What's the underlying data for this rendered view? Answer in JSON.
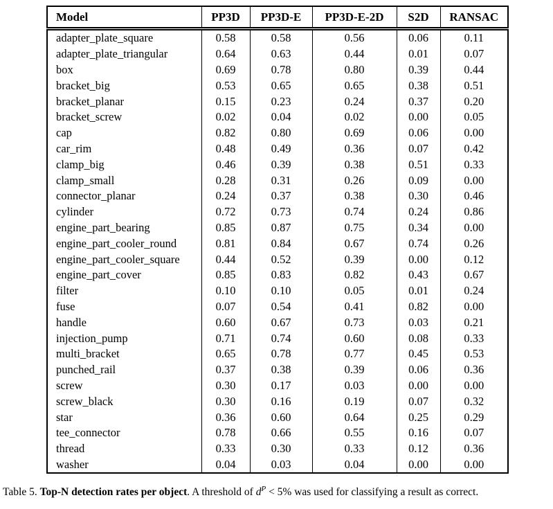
{
  "table": {
    "columns": [
      "Model",
      "PP3D",
      "PP3D-E",
      "PP3D-E-2D",
      "S2D",
      "RANSAC"
    ],
    "rows": [
      [
        "adapter_plate_square",
        "0.58",
        "0.58",
        "0.56",
        "0.06",
        "0.11"
      ],
      [
        "adapter_plate_triangular",
        "0.64",
        "0.63",
        "0.44",
        "0.01",
        "0.07"
      ],
      [
        "box",
        "0.69",
        "0.78",
        "0.80",
        "0.39",
        "0.44"
      ],
      [
        "bracket_big",
        "0.53",
        "0.65",
        "0.65",
        "0.38",
        "0.51"
      ],
      [
        "bracket_planar",
        "0.15",
        "0.23",
        "0.24",
        "0.37",
        "0.20"
      ],
      [
        "bracket_screw",
        "0.02",
        "0.04",
        "0.02",
        "0.00",
        "0.05"
      ],
      [
        "cap",
        "0.82",
        "0.80",
        "0.69",
        "0.06",
        "0.00"
      ],
      [
        "car_rim",
        "0.48",
        "0.49",
        "0.36",
        "0.07",
        "0.42"
      ],
      [
        "clamp_big",
        "0.46",
        "0.39",
        "0.38",
        "0.51",
        "0.33"
      ],
      [
        "clamp_small",
        "0.28",
        "0.31",
        "0.26",
        "0.09",
        "0.00"
      ],
      [
        "connector_planar",
        "0.24",
        "0.37",
        "0.38",
        "0.30",
        "0.46"
      ],
      [
        "cylinder",
        "0.72",
        "0.73",
        "0.74",
        "0.24",
        "0.86"
      ],
      [
        "engine_part_bearing",
        "0.85",
        "0.87",
        "0.75",
        "0.34",
        "0.00"
      ],
      [
        "engine_part_cooler_round",
        "0.81",
        "0.84",
        "0.67",
        "0.74",
        "0.26"
      ],
      [
        "engine_part_cooler_square",
        "0.44",
        "0.52",
        "0.39",
        "0.00",
        "0.12"
      ],
      [
        "engine_part_cover",
        "0.85",
        "0.83",
        "0.82",
        "0.43",
        "0.67"
      ],
      [
        "filter",
        "0.10",
        "0.10",
        "0.05",
        "0.01",
        "0.24"
      ],
      [
        "fuse",
        "0.07",
        "0.54",
        "0.41",
        "0.82",
        "0.00"
      ],
      [
        "handle",
        "0.60",
        "0.67",
        "0.73",
        "0.03",
        "0.21"
      ],
      [
        "injection_pump",
        "0.71",
        "0.74",
        "0.60",
        "0.08",
        "0.33"
      ],
      [
        "multi_bracket",
        "0.65",
        "0.78",
        "0.77",
        "0.45",
        "0.53"
      ],
      [
        "punched_rail",
        "0.37",
        "0.38",
        "0.39",
        "0.06",
        "0.36"
      ],
      [
        "screw",
        "0.30",
        "0.17",
        "0.03",
        "0.00",
        "0.00"
      ],
      [
        "screw_black",
        "0.30",
        "0.16",
        "0.19",
        "0.07",
        "0.32"
      ],
      [
        "star",
        "0.36",
        "0.60",
        "0.64",
        "0.25",
        "0.29"
      ],
      [
        "tee_connector",
        "0.78",
        "0.66",
        "0.55",
        "0.16",
        "0.07"
      ],
      [
        "thread",
        "0.33",
        "0.30",
        "0.33",
        "0.12",
        "0.36"
      ],
      [
        "washer",
        "0.04",
        "0.03",
        "0.04",
        "0.00",
        "0.00"
      ]
    ]
  },
  "chart_data": {
    "type": "table",
    "title": "Top-N detection rates per object",
    "columns": [
      "Model",
      "PP3D",
      "PP3D-E",
      "PP3D-E-2D",
      "S2D",
      "RANSAC"
    ],
    "series": [
      {
        "name": "PP3D",
        "values": [
          0.58,
          0.64,
          0.69,
          0.53,
          0.15,
          0.02,
          0.82,
          0.48,
          0.46,
          0.28,
          0.24,
          0.72,
          0.85,
          0.81,
          0.44,
          0.85,
          0.1,
          0.07,
          0.6,
          0.71,
          0.65,
          0.37,
          0.3,
          0.3,
          0.36,
          0.78,
          0.33,
          0.04
        ]
      },
      {
        "name": "PP3D-E",
        "values": [
          0.58,
          0.63,
          0.78,
          0.65,
          0.23,
          0.04,
          0.8,
          0.49,
          0.39,
          0.31,
          0.37,
          0.73,
          0.87,
          0.84,
          0.52,
          0.83,
          0.1,
          0.54,
          0.67,
          0.74,
          0.78,
          0.38,
          0.17,
          0.16,
          0.6,
          0.66,
          0.3,
          0.03
        ]
      },
      {
        "name": "PP3D-E-2D",
        "values": [
          0.56,
          0.44,
          0.8,
          0.65,
          0.24,
          0.02,
          0.69,
          0.36,
          0.38,
          0.26,
          0.38,
          0.74,
          0.75,
          0.67,
          0.39,
          0.82,
          0.05,
          0.41,
          0.73,
          0.6,
          0.77,
          0.39,
          0.03,
          0.19,
          0.64,
          0.55,
          0.33,
          0.04
        ]
      },
      {
        "name": "S2D",
        "values": [
          0.06,
          0.01,
          0.39,
          0.38,
          0.37,
          0.0,
          0.06,
          0.07,
          0.51,
          0.09,
          0.3,
          0.24,
          0.34,
          0.74,
          0.0,
          0.43,
          0.01,
          0.82,
          0.03,
          0.08,
          0.45,
          0.06,
          0.0,
          0.07,
          0.25,
          0.16,
          0.12,
          0.0
        ]
      },
      {
        "name": "RANSAC",
        "values": [
          0.11,
          0.07,
          0.44,
          0.51,
          0.2,
          0.05,
          0.0,
          0.42,
          0.33,
          0.0,
          0.46,
          0.86,
          0.0,
          0.26,
          0.12,
          0.67,
          0.24,
          0.0,
          0.21,
          0.33,
          0.53,
          0.36,
          0.0,
          0.32,
          0.29,
          0.07,
          0.36,
          0.0
        ]
      }
    ],
    "categories": [
      "adapter_plate_square",
      "adapter_plate_triangular",
      "box",
      "bracket_big",
      "bracket_planar",
      "bracket_screw",
      "cap",
      "car_rim",
      "clamp_big",
      "clamp_small",
      "connector_planar",
      "cylinder",
      "engine_part_bearing",
      "engine_part_cooler_round",
      "engine_part_cooler_square",
      "engine_part_cover",
      "filter",
      "fuse",
      "handle",
      "injection_pump",
      "multi_bracket",
      "punched_rail",
      "screw",
      "screw_black",
      "star",
      "tee_connector",
      "thread",
      "washer"
    ]
  },
  "caption": {
    "prefix": "Table 5. ",
    "bold": "Top-N detection rates per object",
    "after_bold": ". A threshold of ",
    "math_var": "d",
    "math_sup": "P",
    "suffix": " < 5% was used for classifying a result as correct."
  },
  "colors": {
    "text": "#000000",
    "background": "#ffffff",
    "border": "#000000"
  }
}
